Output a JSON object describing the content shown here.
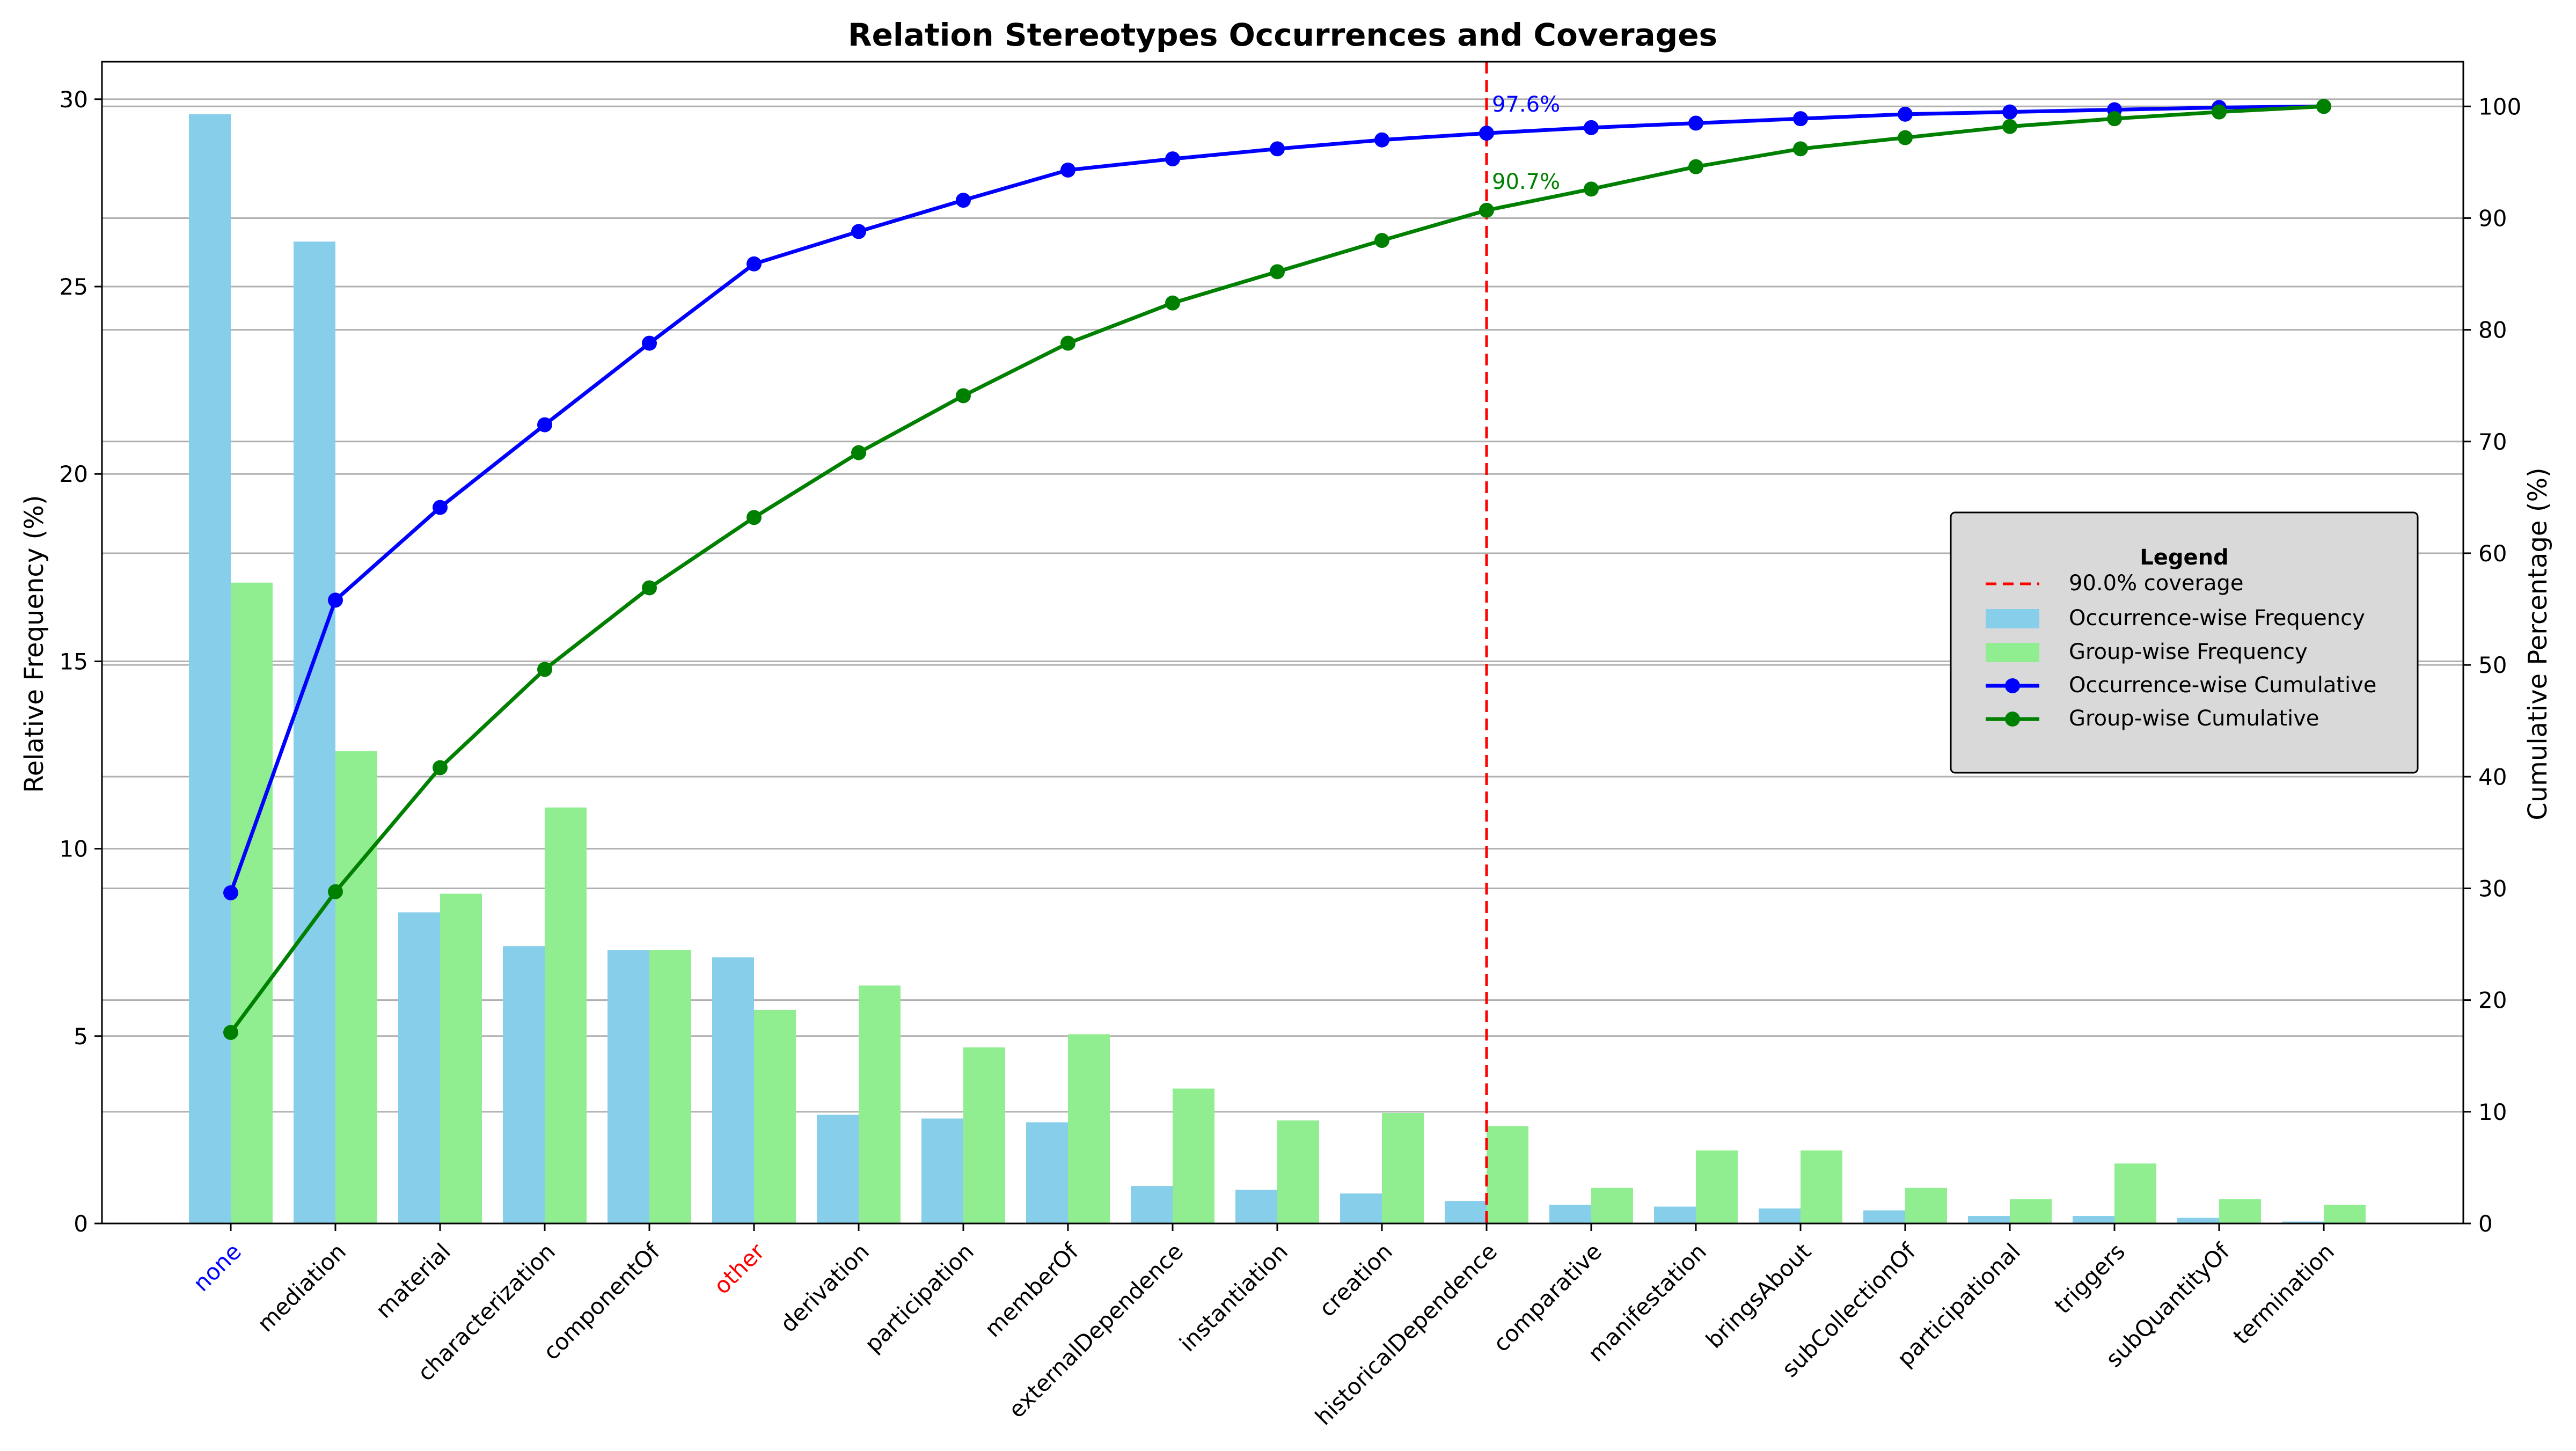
{
  "chart_data": {
    "type": "bar",
    "title": "Relation Stereotypes Occurrences and Coverages",
    "xlabel": "",
    "ylabel": "Relative Frequency (%)",
    "y2label": "Cumulative Percentage (%)",
    "ylim": [
      0,
      31
    ],
    "y2lim": [
      0,
      104
    ],
    "yticks": [
      0,
      5,
      10,
      15,
      20,
      25,
      30
    ],
    "y2ticks": [
      0,
      10,
      20,
      30,
      40,
      50,
      60,
      70,
      80,
      90,
      100
    ],
    "grid": true,
    "categories": [
      "none",
      "mediation",
      "material",
      "characterization",
      "componentOf",
      "other",
      "derivation",
      "participation",
      "memberOf",
      "externalDependence",
      "instantiation",
      "creation",
      "historicalDependence",
      "comparative",
      "manifestation",
      "bringsAbout",
      "subCollectionOf",
      "participational",
      "triggers",
      "subQuantityOf",
      "termination"
    ],
    "category_label_colors": {
      "none": "#0000ff",
      "other": "#ff0000"
    },
    "series": [
      {
        "name": "Occurrence-wise Frequency",
        "kind": "bar",
        "axis": "left",
        "color": "#87ceeb",
        "values": [
          29.6,
          26.2,
          8.3,
          7.4,
          7.3,
          7.1,
          2.9,
          2.8,
          2.7,
          1.0,
          0.9,
          0.8,
          0.6,
          0.5,
          0.45,
          0.4,
          0.35,
          0.2,
          0.2,
          0.15,
          0.05
        ]
      },
      {
        "name": "Group-wise Frequency",
        "kind": "bar",
        "axis": "left",
        "color": "#90ee90",
        "values": [
          17.1,
          12.6,
          8.8,
          11.1,
          7.3,
          5.7,
          6.35,
          4.7,
          5.05,
          3.6,
          2.75,
          2.95,
          2.6,
          0.95,
          1.95,
          1.95,
          0.95,
          0.65,
          1.6,
          0.65,
          0.5
        ]
      },
      {
        "name": "Occurrence-wise Cumulative",
        "kind": "line",
        "axis": "right",
        "color": "#0000ff",
        "values": [
          29.6,
          55.8,
          64.1,
          71.5,
          78.8,
          85.9,
          88.8,
          91.6,
          94.3,
          95.3,
          96.2,
          97.0,
          97.6,
          98.1,
          98.5,
          98.9,
          99.3,
          99.5,
          99.7,
          99.9,
          100.0
        ]
      },
      {
        "name": "Group-wise Cumulative",
        "kind": "line",
        "axis": "right",
        "color": "#008000",
        "values": [
          17.1,
          29.7,
          40.8,
          49.6,
          56.9,
          63.2,
          69.0,
          74.1,
          78.8,
          82.4,
          85.2,
          88.0,
          90.7,
          92.6,
          94.6,
          96.2,
          97.2,
          98.2,
          98.9,
          99.5,
          100.0
        ]
      }
    ],
    "threshold": {
      "label": "90.0% coverage",
      "category": "historicalDependence",
      "color": "#ff0000"
    },
    "annotations": [
      {
        "text": "97.6%",
        "category": "historicalDependence",
        "value": 97.6,
        "color": "#0000ff"
      },
      {
        "text": "90.7%",
        "category": "historicalDependence",
        "value": 90.7,
        "color": "#008000"
      }
    ],
    "legend": {
      "title": "Legend",
      "placement": "center-right",
      "entries": [
        "90.0% coverage",
        "Occurrence-wise Frequency",
        "Group-wise Frequency",
        "Occurrence-wise Cumulative",
        "Group-wise Cumulative"
      ]
    }
  }
}
